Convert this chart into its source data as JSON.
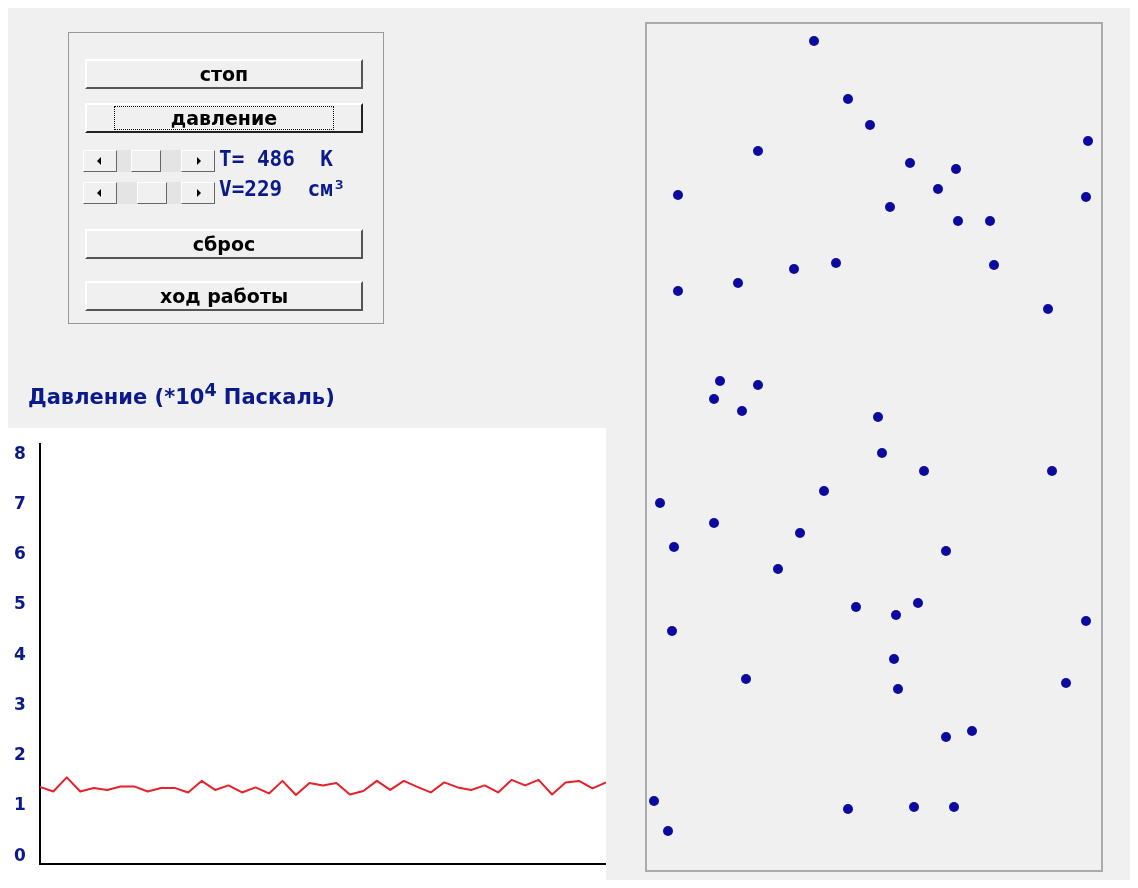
{
  "chart_data": [
    {
      "type": "other",
      "annotations": [
        "стоп",
        "давление",
        "T= 486  K",
        "V=229  см³",
        "сброс",
        "ход работы"
      ]
    },
    {
      "type": "line",
      "title": "Давление (*10$^{4}$ Паскаль)",
      "categories": [
        null,
        null,
        null,
        null,
        null,
        null,
        null,
        null,
        null,
        null,
        null,
        null,
        null,
        null,
        null,
        null,
        null,
        null,
        null,
        null,
        null,
        null,
        null,
        null,
        null,
        null,
        null,
        null,
        null,
        null,
        null,
        null,
        null,
        null,
        null,
        null,
        null,
        null,
        null,
        null,
        null,
        null,
        null
      ],
      "series": [
        {
          "color": "#e8202a",
          "values": [
            1.38,
            1.29,
            1.57,
            1.29,
            1.36,
            1.32,
            1.39,
            1.39,
            1.29,
            1.36,
            1.36,
            1.27,
            1.5,
            1.32,
            1.41,
            1.27,
            1.37,
            1.25,
            1.5,
            1.22,
            1.46,
            1.41,
            1.46,
            1.23,
            1.3,
            1.5,
            1.32,
            1.5,
            1.38,
            1.27,
            1.47,
            1.37,
            1.32,
            1.41,
            1.27,
            1.52,
            1.41,
            1.52,
            1.23,
            1.47,
            1.5,
            1.35,
            1.47
          ]
        }
      ],
      "ylim": [
        -0.15,
        8.2
      ],
      "yticks": [
        0,
        1,
        2,
        3,
        4,
        5,
        6,
        7,
        8
      ],
      "grid": false,
      "legend": false,
      "marker": "none",
      "line_style": "solid",
      "tick_labels": "y"
    }
  ]
}
